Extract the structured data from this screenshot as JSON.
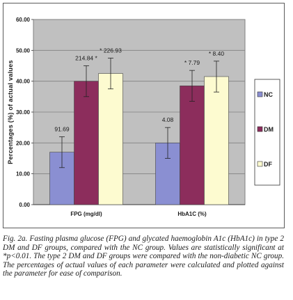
{
  "caption": "Fig. 2a. Fasting plasma glucose (FPG) and glycated haemoglobin A1c (HbA1c) in type 2 DM and DF groups, compared with the NC group. Values are statistically significant at *p<0.01. The type 2 DM and DF groups were compared with the non-diabetic NC group. The percentages of actual values of each parameter were calculated and plotted against the parameter for ease of comparison.",
  "colors": {
    "plot_bg": "#c0c0c0",
    "NC": "#8a8fd2",
    "DM": "#8c2d5c",
    "DF": "#fdfbd0",
    "grid": "#808080"
  },
  "chart_data": {
    "type": "bar",
    "title": "",
    "xlabel": "",
    "ylabel": "Percentages (%) of actual values",
    "ylim": [
      0,
      60
    ],
    "yticks": [
      "0.00",
      "10.00",
      "20.00",
      "30.00",
      "40.00",
      "50.00",
      "60.00"
    ],
    "grid": true,
    "legend_position": "right",
    "categories": [
      "FPG (mg/dl)",
      "HbA1C (%)"
    ],
    "series": [
      {
        "name": "NC",
        "values": [
          17.0,
          20.0
        ],
        "errors": [
          5.0,
          5.0
        ],
        "labels": [
          "91.69",
          "4.08"
        ]
      },
      {
        "name": "DM",
        "values": [
          40.0,
          38.5
        ],
        "errors": [
          5.0,
          5.0
        ],
        "labels": [
          "214.84 *",
          "* 7.79"
        ]
      },
      {
        "name": "DF",
        "values": [
          42.5,
          41.5
        ],
        "errors": [
          5.0,
          5.0
        ],
        "labels": [
          "* 226.93",
          "* 8.40"
        ]
      }
    ]
  }
}
